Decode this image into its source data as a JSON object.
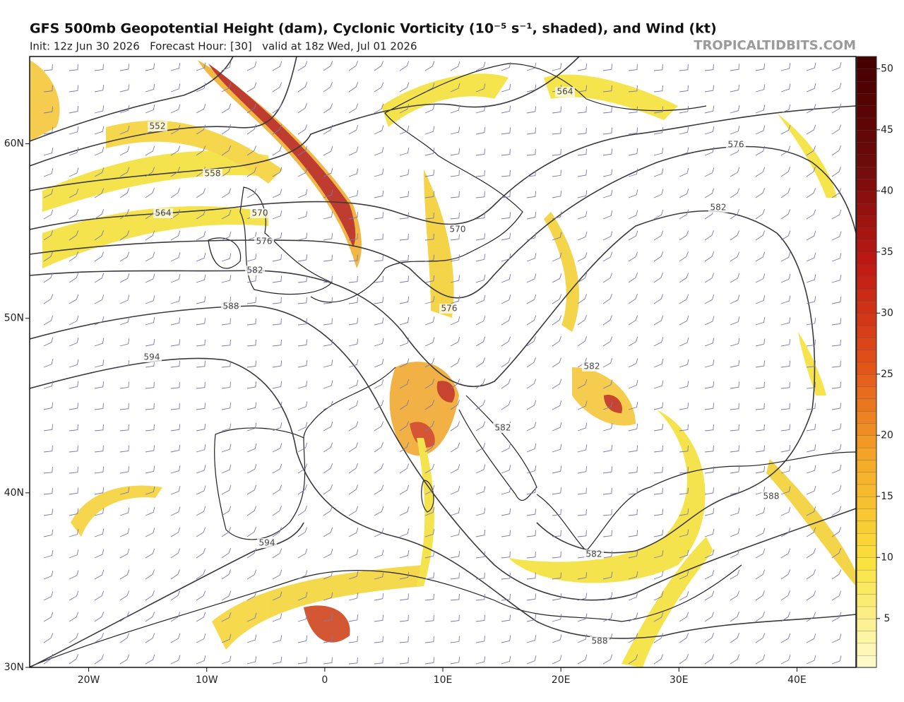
{
  "header": {
    "title": "GFS 500mb Geopotential Height (dam), Cyclonic Vorticity (10⁻⁵ s⁻¹, shaded), and Wind (kt)",
    "subtitle": "Init: 12z Jun 30 2026   Forecast Hour: [30]   valid at 18z Wed, Jul 01 2026",
    "brand": "TROPICALTIDBITS.COM"
  },
  "map": {
    "xlim": [
      -25,
      45
    ],
    "ylim": [
      30,
      65
    ],
    "xticks": [
      {
        "value": -20,
        "label": "20W"
      },
      {
        "value": -10,
        "label": "10W"
      },
      0,
      {
        "value": 10,
        "label": "10E"
      },
      {
        "value": 20,
        "label": "20E"
      },
      {
        "value": 30,
        "label": "30E"
      },
      {
        "value": 40,
        "label": "40E"
      }
    ],
    "yticks": [
      {
        "value": 30,
        "label": "30N"
      },
      {
        "value": 40,
        "label": "40N"
      },
      {
        "value": 50,
        "label": "50N"
      },
      {
        "value": 60,
        "label": "60N"
      }
    ],
    "contour_labels": [
      "552",
      "558",
      "564",
      "570",
      "576",
      "582",
      "588",
      "594",
      "564",
      "576",
      "582",
      "570",
      "576",
      "582",
      "582",
      "588",
      "582",
      "594",
      "588"
    ]
  },
  "colorbar": {
    "lim": [
      1,
      51
    ],
    "ticks": [
      5,
      10,
      15,
      20,
      25,
      30,
      35,
      40,
      45,
      50
    ]
  }
}
